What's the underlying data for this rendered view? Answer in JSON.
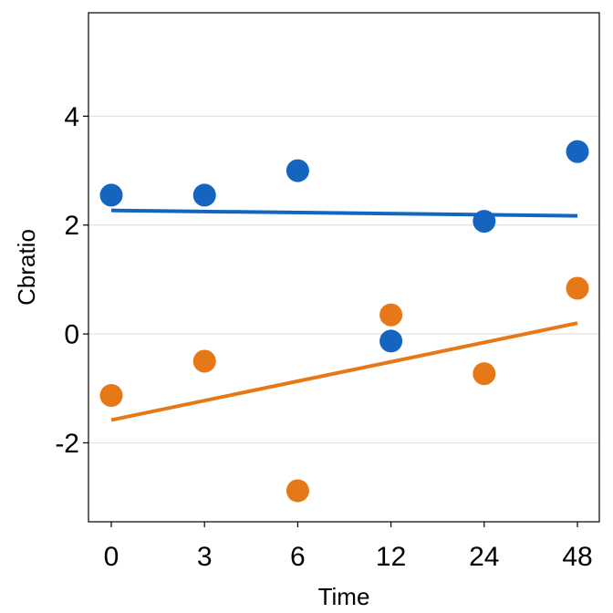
{
  "chart_data": {
    "type": "scatter",
    "title": "",
    "xlabel": "Time",
    "ylabel": "Cbratio",
    "categories": [
      "0",
      "3",
      "6",
      "12",
      "24",
      "48"
    ],
    "ylim": [
      -3.45,
      5.9
    ],
    "yticks": [
      -2,
      0,
      2,
      4
    ],
    "ytick_labels": [
      "-2",
      "0",
      "2",
      "4"
    ],
    "grid": "horizontal-major",
    "legend": "none",
    "series": [
      {
        "color": "#1565C0",
        "points": [
          2.55,
          2.55,
          3.0,
          -0.13,
          2.07,
          3.35
        ],
        "trend": [
          2.27,
          2.17
        ]
      },
      {
        "color": "#E67817",
        "points": [
          -1.13,
          -0.5,
          -2.88,
          0.35,
          -0.73,
          0.84
        ],
        "trend": [
          -1.58,
          0.2
        ]
      }
    ]
  }
}
